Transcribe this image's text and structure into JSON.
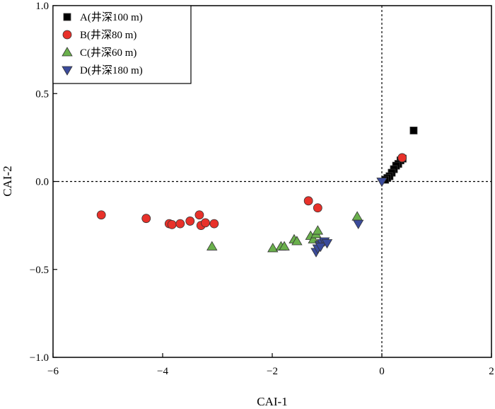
{
  "chart_data": {
    "type": "scatter",
    "xlabel": "CAI-1",
    "ylabel": "CAI-2",
    "xlim": [
      -6,
      2
    ],
    "ylim": [
      -1.0,
      1.0
    ],
    "xticks": [
      "−6",
      "−4",
      "−2",
      "0",
      "2"
    ],
    "yticks": [
      "−1.0",
      "−0.5",
      "0.0",
      "0.5",
      "1.0"
    ],
    "xtick_values": [
      -6,
      -4,
      -2,
      0,
      2
    ],
    "ytick_values": [
      -1.0,
      -0.5,
      0.0,
      0.5,
      1.0
    ],
    "reference_lines": {
      "x": 0,
      "y": 0
    },
    "legend_position": "top-left",
    "series": [
      {
        "name": "A(井深100 m)",
        "marker": "square",
        "color": "#000000",
        "points": [
          [
            0.58,
            0.29
          ],
          [
            0.38,
            0.13
          ],
          [
            0.34,
            0.12
          ],
          [
            0.3,
            0.1
          ],
          [
            0.26,
            0.09
          ],
          [
            0.22,
            0.07
          ],
          [
            0.18,
            0.05
          ],
          [
            0.14,
            0.03
          ],
          [
            0.1,
            0.02
          ],
          [
            0.06,
            0.01
          ]
        ]
      },
      {
        "name": "B(井深80 m)",
        "marker": "circle",
        "color": "#e8312a",
        "points": [
          [
            -5.12,
            -0.19
          ],
          [
            -4.3,
            -0.21
          ],
          [
            -3.88,
            -0.24
          ],
          [
            -3.83,
            -0.245
          ],
          [
            -3.68,
            -0.24
          ],
          [
            -3.5,
            -0.225
          ],
          [
            -3.33,
            -0.19
          ],
          [
            -3.3,
            -0.25
          ],
          [
            -3.22,
            -0.235
          ],
          [
            -3.06,
            -0.24
          ],
          [
            -1.34,
            -0.11
          ],
          [
            -1.17,
            -0.15
          ],
          [
            0.37,
            0.135
          ]
        ]
      },
      {
        "name": "C(井深60 m)",
        "marker": "triangle-up",
        "color": "#6ab04c",
        "points": [
          [
            -3.1,
            -0.37
          ],
          [
            -1.99,
            -0.38
          ],
          [
            -1.84,
            -0.37
          ],
          [
            -1.78,
            -0.37
          ],
          [
            -1.6,
            -0.33
          ],
          [
            -1.55,
            -0.34
          ],
          [
            -1.3,
            -0.31
          ],
          [
            -1.25,
            -0.33
          ],
          [
            -1.2,
            -0.3
          ],
          [
            -1.17,
            -0.28
          ],
          [
            -0.45,
            -0.2
          ]
        ]
      },
      {
        "name": "D(井深180 m)",
        "marker": "triangle-down",
        "color": "#3b4b9b",
        "points": [
          [
            -1.2,
            -0.4
          ],
          [
            -1.17,
            -0.38
          ],
          [
            -1.13,
            -0.36
          ],
          [
            -1.09,
            -0.35
          ],
          [
            -1.05,
            -0.34
          ],
          [
            -1.12,
            -0.37
          ],
          [
            -1.0,
            -0.35
          ],
          [
            -0.43,
            -0.24
          ],
          [
            0.0,
            0.0
          ]
        ]
      }
    ]
  }
}
